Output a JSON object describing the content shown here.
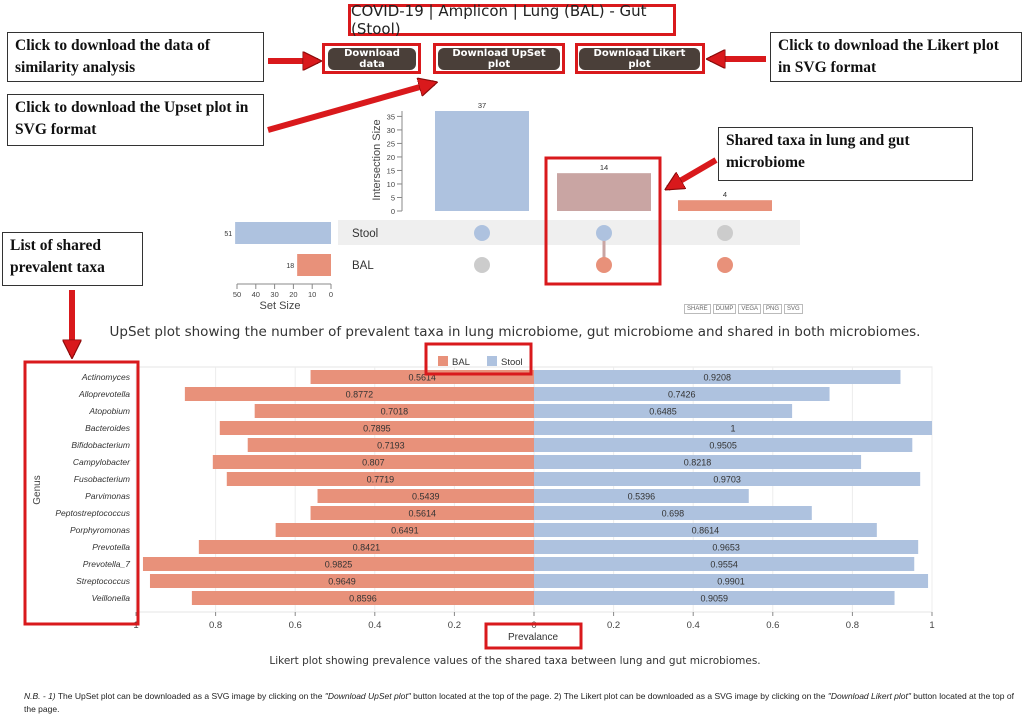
{
  "header": {
    "title": "COVID-19 | Amplicon | Lung (BAL) - Gut (Stool)"
  },
  "buttons": {
    "download_data": "Download data",
    "download_upset": "Download UpSet plot",
    "download_likert": "Download Likert plot"
  },
  "callouts": {
    "download_data": "Click to download the data of similarity analysis",
    "download_upset": "Click to download the Upset plot in SVG format",
    "download_likert": "Click to download the Likert plot in SVG format",
    "shared_taxa": "Shared taxa in lung and gut microbiome",
    "shared_list": "List of shared prevalent taxa"
  },
  "upset_toolbar": [
    "SHARE",
    "DUMP",
    "VEGA",
    "PNG",
    "SVG"
  ],
  "captions": {
    "upset": "UpSet plot showing the number of prevalent taxa in lung microbiome, gut microbiome and shared in both microbiomes.",
    "likert": "Likert plot showing prevalence values of the shared taxa between lung and gut microbiomes."
  },
  "note": {
    "nb": "N.B. - 1)",
    "part1": " The UpSet plot can be downloaded as a SVG image by clicking on the ",
    "btn1": "\"Download UpSet plot\"",
    "part2": " button located at the top of the page. ",
    "num2": "2)",
    "part3": " The Likert plot can be downloaded as a SVG image by clicking on the ",
    "btn2": "\"Download Likert plot\"",
    "part4": " button located at the top of the page."
  },
  "colors": {
    "bal": "#e8917a",
    "stool": "#aec2df",
    "shared": "#c9a5a3",
    "dot_inactive": "#cccccc",
    "highlight": "#d9191c"
  },
  "chart_data": [
    {
      "type": "bar",
      "subtype": "upset",
      "ylabel": "Intersection Size",
      "ylim": [
        0,
        37
      ],
      "yticks": [
        0,
        5,
        10,
        15,
        20,
        25,
        30,
        35
      ],
      "intersections": [
        {
          "sets": [
            "Stool"
          ],
          "value": 37
        },
        {
          "sets": [
            "Stool",
            "BAL"
          ],
          "value": 14
        },
        {
          "sets": [
            "BAL"
          ],
          "value": 4
        }
      ],
      "sets": [
        {
          "name": "Stool",
          "size": 51
        },
        {
          "name": "BAL",
          "size": 18
        }
      ],
      "set_size_label": "Set Size",
      "set_size_ticks": [
        50,
        40,
        30,
        20,
        10,
        0
      ]
    },
    {
      "type": "bar",
      "subtype": "likert-diverging",
      "ylabel": "Genus",
      "xlabel": "Prevalance",
      "xticks": [
        "1",
        "0.8",
        "0.6",
        "0.4",
        "0.2",
        "0",
        "0.2",
        "0.4",
        "0.6",
        "0.8",
        "1"
      ],
      "legend": [
        "BAL",
        "Stool"
      ],
      "legend_position": "top",
      "categories": [
        "Actinomyces",
        "Alloprevotella",
        "Atopobium",
        "Bacteroides",
        "Bifidobacterium",
        "Campylobacter",
        "Fusobacterium",
        "Parvimonas",
        "Peptostreptococcus",
        "Porphyromonas",
        "Prevotella",
        "Prevotella_7",
        "Streptococcus",
        "Veillonella"
      ],
      "series": [
        {
          "name": "BAL",
          "values": [
            0.5614,
            0.8772,
            0.7018,
            0.7895,
            0.7193,
            0.807,
            0.7719,
            0.5439,
            0.5614,
            0.6491,
            0.8421,
            0.9825,
            0.9649,
            0.8596
          ]
        },
        {
          "name": "Stool",
          "values": [
            0.9208,
            0.7426,
            0.6485,
            1,
            0.9505,
            0.8218,
            0.9703,
            0.5396,
            0.698,
            0.8614,
            0.9653,
            0.9554,
            0.9901,
            0.9059
          ]
        }
      ]
    }
  ]
}
